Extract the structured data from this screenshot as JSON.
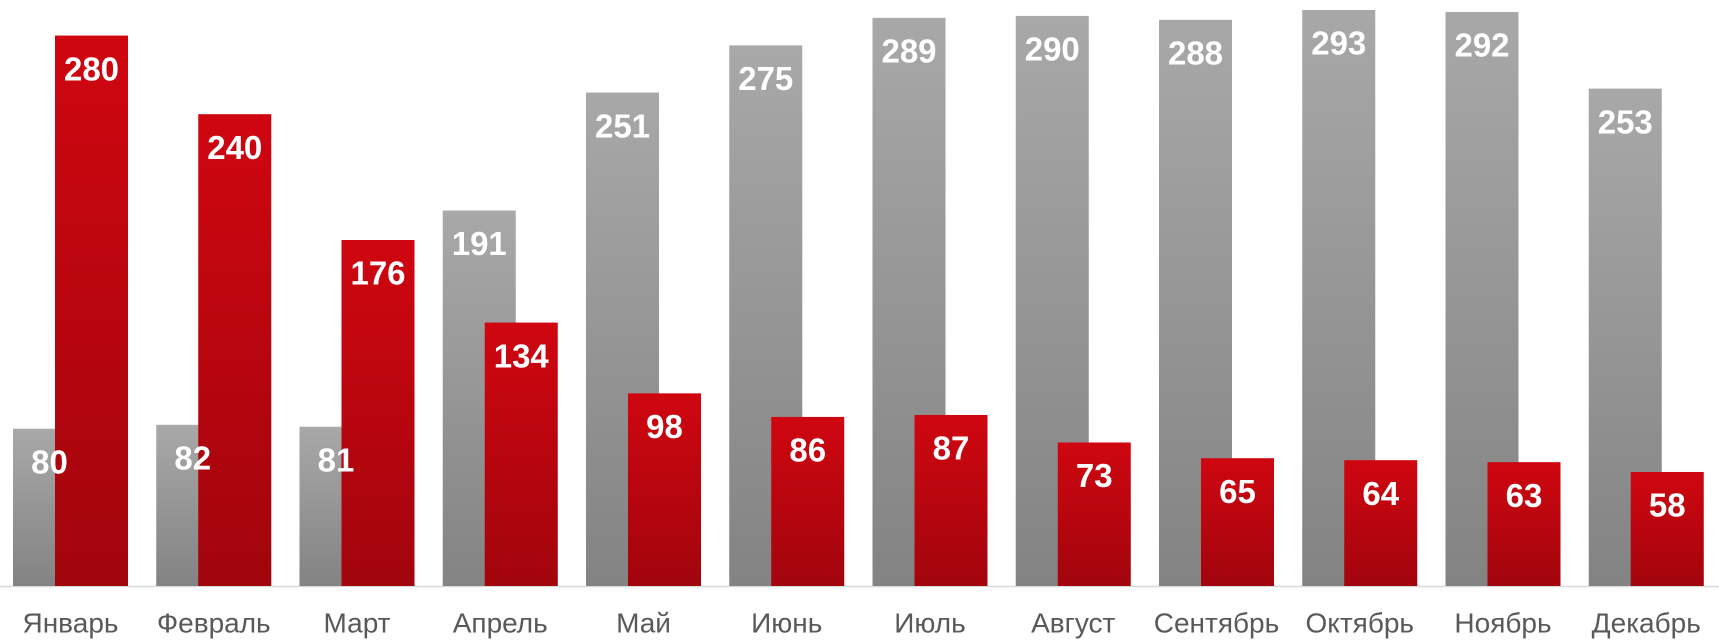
{
  "chart_data": {
    "type": "bar",
    "categories": [
      "Январь",
      "Февраль",
      "Март",
      "Апрель",
      "Май",
      "Июнь",
      "Июль",
      "Август",
      "Сентябрь",
      "Октябрь",
      "Ноябрь",
      "Декабрь"
    ],
    "series": [
      {
        "color": "#a9a8a8",
        "values": [
          80,
          82,
          81,
          191,
          251,
          275,
          289,
          290,
          288,
          293,
          292,
          253
        ]
      },
      {
        "color": "#cf0610",
        "values": [
          280,
          240,
          176,
          134,
          98,
          86,
          87,
          73,
          65,
          64,
          63,
          58
        ]
      }
    ]
  }
}
